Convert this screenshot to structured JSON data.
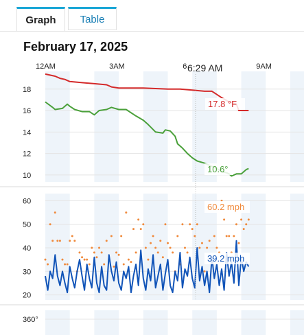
{
  "tabs": [
    {
      "label": "Graph",
      "active": true
    },
    {
      "label": "Table",
      "active": false
    }
  ],
  "date": "February 17, 2025",
  "cursor_time": "6:29 AM",
  "colors": {
    "temperature": "#d42a2a",
    "dewpoint": "#4aa03a",
    "gust": "#f08a3c",
    "wind": "#1154b8",
    "band": "#eef4fa",
    "grid": "#e4e4e4",
    "tab_accent": "#1aa6d6"
  },
  "chart_data": [
    {
      "type": "line",
      "x_ticks": [
        {
          "label": "12AM",
          "x": 0
        },
        {
          "label": "3AM",
          "x": 3
        },
        {
          "label": "6",
          "x": 6
        },
        {
          "label": "9AM",
          "x": 9
        }
      ],
      "xlim": [
        0,
        11
      ],
      "ylim": [
        9.8,
        19.2
      ],
      "yticks": [
        10,
        12,
        14,
        16,
        18
      ],
      "series": [
        {
          "name": "temperature",
          "label": "17.8 °F",
          "x": [
            0,
            0.4,
            0.6,
            0.8,
            1.0,
            1.5,
            2.0,
            2.5,
            2.7,
            3.0,
            4.0,
            5.0,
            5.5,
            6.0,
            6.5,
            6.8,
            7.0,
            7.2,
            7.5,
            7.8,
            7.9,
            8.3
          ],
          "y": [
            19.4,
            19.2,
            19.0,
            18.9,
            18.7,
            18.6,
            18.5,
            18.4,
            18.2,
            18.1,
            18.1,
            18.0,
            18.0,
            17.9,
            17.8,
            17.8,
            17.5,
            17.2,
            16.8,
            16.6,
            16.0,
            16.0
          ]
        },
        {
          "name": "dewpoint",
          "label": "10.6°",
          "x": [
            0,
            0.3,
            0.4,
            0.7,
            0.9,
            1.0,
            1.2,
            1.5,
            1.8,
            2.0,
            2.2,
            2.5,
            2.7,
            3.0,
            3.3,
            3.7,
            4.0,
            4.2,
            4.5,
            4.8,
            4.9,
            5.1,
            5.3,
            5.4,
            5.6,
            5.8,
            6.0,
            6.2,
            6.5,
            6.7,
            7.0,
            7.2,
            7.4,
            7.5,
            7.6,
            7.8,
            8.0,
            8.2,
            8.3
          ],
          "y": [
            16.8,
            16.3,
            16.1,
            16.2,
            16.6,
            16.4,
            16.1,
            15.9,
            15.9,
            15.6,
            16.0,
            16.1,
            16.3,
            16.1,
            16.1,
            15.5,
            15.1,
            14.7,
            14.0,
            13.9,
            14.2,
            14.1,
            13.6,
            12.9,
            12.5,
            12.0,
            11.6,
            11.3,
            11.1,
            10.9,
            10.6,
            10.3,
            10.2,
            10.1,
            9.9,
            10.1,
            10.1,
            10.5,
            10.6
          ]
        }
      ]
    },
    {
      "type": "line",
      "x_ticks": [
        {
          "label": "12AM",
          "x": 0
        },
        {
          "label": "3AM",
          "x": 3
        },
        {
          "label": "6",
          "x": 6
        },
        {
          "label": "9AM",
          "x": 9
        }
      ],
      "xlim": [
        0,
        11
      ],
      "ylim": [
        19,
        61
      ],
      "yticks": [
        20,
        30,
        40,
        50,
        60
      ],
      "series": [
        {
          "name": "gust",
          "label": "60.2 mph",
          "style": "dots",
          "x": [
            0,
            0.1,
            0.2,
            0.3,
            0.4,
            0.5,
            0.6,
            0.7,
            0.8,
            0.9,
            1.0,
            1.1,
            1.2,
            1.3,
            1.4,
            1.5,
            1.6,
            1.7,
            1.8,
            1.9,
            2.0,
            2.1,
            2.2,
            2.3,
            2.4,
            2.5,
            2.6,
            2.7,
            2.8,
            2.9,
            3.0,
            3.1,
            3.2,
            3.3,
            3.4,
            3.5,
            3.6,
            3.7,
            3.8,
            3.9,
            4.0,
            4.1,
            4.2,
            4.3,
            4.4,
            4.5,
            4.6,
            4.7,
            4.8,
            4.9,
            5.0,
            5.1,
            5.2,
            5.3,
            5.4,
            5.5,
            5.6,
            5.7,
            5.8,
            5.9,
            6.0,
            6.1,
            6.2,
            6.3,
            6.4,
            6.5,
            6.6,
            6.7,
            6.8,
            6.9,
            7.0,
            7.1,
            7.2,
            7.3,
            7.4,
            7.5,
            7.6,
            7.7,
            7.8,
            7.9,
            8.0,
            8.1,
            8.2,
            8.3
          ],
          "y": [
            35,
            33,
            50,
            43,
            55,
            43,
            43,
            35,
            33,
            33,
            43,
            45,
            43,
            30,
            38,
            36,
            35,
            35,
            33,
            40,
            38,
            36,
            40,
            38,
            33,
            43,
            35,
            45,
            32,
            38,
            37,
            45,
            33,
            55,
            35,
            34,
            48,
            38,
            52,
            48,
            50,
            40,
            35,
            42,
            45,
            40,
            38,
            43,
            36,
            50,
            42,
            40,
            38,
            30,
            45,
            33,
            50,
            40,
            38,
            50,
            48,
            45,
            50,
            40,
            42,
            30,
            40,
            43,
            35,
            45,
            40,
            38,
            60,
            52,
            45,
            45,
            38,
            45,
            50,
            42,
            52,
            48,
            50,
            52
          ]
        },
        {
          "name": "wind",
          "label": "39.2 mph",
          "x": [
            0,
            0.1,
            0.2,
            0.3,
            0.4,
            0.5,
            0.6,
            0.7,
            0.8,
            0.9,
            1.0,
            1.1,
            1.2,
            1.3,
            1.4,
            1.5,
            1.6,
            1.7,
            1.8,
            1.9,
            2.0,
            2.1,
            2.2,
            2.3,
            2.4,
            2.5,
            2.6,
            2.7,
            2.8,
            2.9,
            3.0,
            3.1,
            3.2,
            3.3,
            3.4,
            3.5,
            3.6,
            3.7,
            3.8,
            3.9,
            4.0,
            4.1,
            4.2,
            4.3,
            4.4,
            4.5,
            4.6,
            4.7,
            4.8,
            4.9,
            5.0,
            5.1,
            5.2,
            5.3,
            5.4,
            5.5,
            5.6,
            5.7,
            5.8,
            5.9,
            6.0,
            6.1,
            6.2,
            6.3,
            6.4,
            6.5,
            6.6,
            6.7,
            6.8,
            6.9,
            7.0,
            7.1,
            7.2,
            7.3,
            7.4,
            7.5,
            7.6,
            7.7,
            7.8,
            7.9,
            8.0,
            8.1,
            8.2,
            8.3
          ],
          "y": [
            28,
            22,
            30,
            27,
            37,
            28,
            24,
            30,
            25,
            21,
            32,
            27,
            23,
            30,
            35,
            28,
            22,
            33,
            27,
            23,
            36,
            25,
            21,
            32,
            24,
            22,
            37,
            30,
            26,
            34,
            25,
            22,
            30,
            27,
            32,
            21,
            28,
            33,
            24,
            39,
            27,
            22,
            31,
            26,
            37,
            23,
            28,
            33,
            22,
            29,
            35,
            24,
            21,
            30,
            26,
            38,
            23,
            31,
            28,
            36,
            27,
            23,
            40,
            26,
            32,
            24,
            30,
            21,
            36,
            27,
            33,
            24,
            31,
            22,
            38,
            28,
            34,
            25,
            43,
            24,
            36,
            30,
            34,
            32
          ]
        }
      ]
    },
    {
      "type": "line",
      "yticks": [
        "360°"
      ]
    }
  ]
}
